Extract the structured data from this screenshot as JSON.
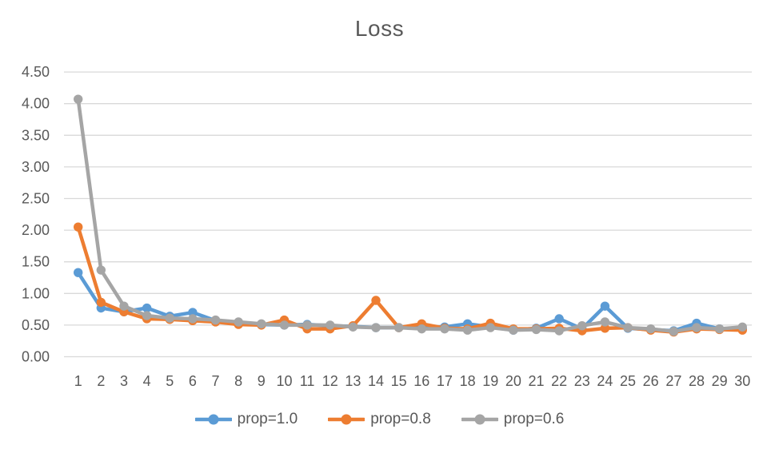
{
  "chart_data": {
    "type": "line",
    "title": "Loss",
    "x": [
      1,
      2,
      3,
      4,
      5,
      6,
      7,
      8,
      9,
      10,
      11,
      12,
      13,
      14,
      15,
      16,
      17,
      18,
      19,
      20,
      21,
      22,
      23,
      24,
      25,
      26,
      27,
      28,
      29,
      30
    ],
    "series": [
      {
        "name": "prop=1.0",
        "color": "#5B9BD5",
        "values": [
          1.33,
          0.77,
          0.71,
          0.77,
          0.64,
          0.7,
          0.57,
          0.54,
          0.51,
          0.5,
          0.51,
          0.49,
          0.48,
          0.46,
          0.46,
          0.47,
          0.47,
          0.52,
          0.47,
          0.42,
          0.45,
          0.6,
          0.44,
          0.8,
          0.45,
          0.43,
          0.41,
          0.53,
          0.44,
          0.44
        ]
      },
      {
        "name": "prop=0.8",
        "color": "#ED7D31",
        "values": [
          2.05,
          0.86,
          0.71,
          0.6,
          0.59,
          0.57,
          0.55,
          0.51,
          0.5,
          0.58,
          0.44,
          0.44,
          0.49,
          0.89,
          0.46,
          0.52,
          0.45,
          0.44,
          0.53,
          0.44,
          0.44,
          0.45,
          0.41,
          0.45,
          0.46,
          0.42,
          0.39,
          0.44,
          0.43,
          0.42
        ]
      },
      {
        "name": "prop=0.6",
        "color": "#A5A5A5",
        "values": [
          4.07,
          1.37,
          0.8,
          0.65,
          0.61,
          0.6,
          0.58,
          0.55,
          0.52,
          0.5,
          0.5,
          0.5,
          0.47,
          0.46,
          0.46,
          0.44,
          0.44,
          0.42,
          0.46,
          0.42,
          0.43,
          0.41,
          0.49,
          0.55,
          0.46,
          0.44,
          0.4,
          0.46,
          0.44,
          0.47
        ]
      }
    ],
    "ylim": [
      0.0,
      4.5
    ],
    "yticks": [
      "0.00",
      "0.50",
      "1.00",
      "1.50",
      "2.00",
      "2.50",
      "3.00",
      "3.50",
      "4.00",
      "4.50"
    ],
    "grid": "horizontal",
    "legend_position": "bottom-center",
    "xlabel": "",
    "ylabel": "",
    "colors": {
      "text": "#595959",
      "gridline": "#D9D9D9",
      "background": "#FFFFFF"
    }
  }
}
